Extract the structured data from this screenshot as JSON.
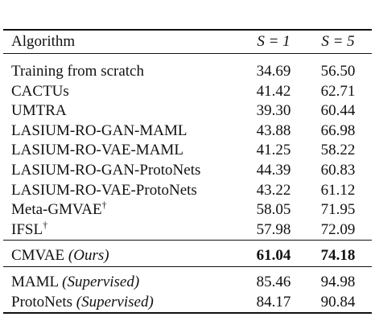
{
  "table": {
    "header": [
      "Algorithm",
      "S = 1",
      "S = 5"
    ],
    "groups": [
      [
        {
          "name": "Training from scratch",
          "s1": "34.69",
          "s5": "56.50"
        },
        {
          "name": "CACTUs",
          "s1": "41.42",
          "s5": "62.71"
        },
        {
          "name": "UMTRA",
          "s1": "39.30",
          "s5": "60.44"
        },
        {
          "name": "LASIUM-RO-GAN-MAML",
          "s1": "43.88",
          "s5": "66.98"
        },
        {
          "name": "LASIUM-RO-VAE-MAML",
          "s1": "41.25",
          "s5": "58.22"
        },
        {
          "name": "LASIUM-RO-GAN-ProtoNets",
          "s1": "44.39",
          "s5": "60.83"
        },
        {
          "name": "LASIUM-RO-VAE-ProtoNets",
          "s1": "43.22",
          "s5": "61.12"
        },
        {
          "name": "Meta-GMVAE",
          "marker": "†",
          "s1": "58.05",
          "s5": "71.95"
        },
        {
          "name": "IFSL",
          "marker": "†",
          "s1": "57.98",
          "s5": "72.09"
        }
      ],
      [
        {
          "name": "CMVAE",
          "note": "(Ours)",
          "s1": "61.04",
          "s5": "74.18",
          "bold": true
        }
      ],
      [
        {
          "name": "MAML",
          "note": "(Supervised)",
          "s1": "85.46",
          "s5": "94.98"
        },
        {
          "name": "ProtoNets",
          "note": "(Supervised)",
          "s1": "84.17",
          "s5": "90.84"
        }
      ]
    ]
  }
}
